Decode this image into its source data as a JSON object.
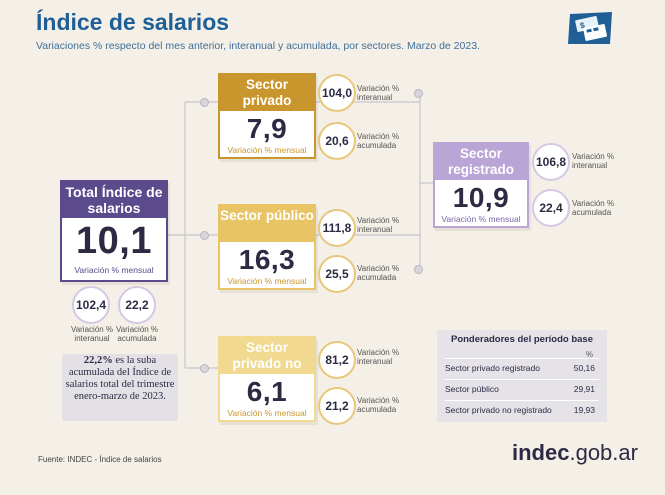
{
  "header": {
    "title": "Índice de salarios",
    "subtitle": "Variaciones % respecto del mes anterior, interanual y acumulada, por sectores. Marzo de 2023."
  },
  "total": {
    "title": "Total Índice de salarios",
    "value": "10,1",
    "caption": "Variación % mensual",
    "interanual_value": "102,4",
    "interanual_label": "Variación % interanual",
    "acumulada_value": "22,2",
    "acumulada_label": "Variación % acumulada"
  },
  "privado_registrado": {
    "title": "Sector privado registrado",
    "value": "7,9",
    "caption": "Variación % mensual",
    "interanual_value": "104,0",
    "interanual_label": "Variación % interanual",
    "acumulada_value": "20,6",
    "acumulada_label": "Variación % acumulada"
  },
  "publico": {
    "title": "Sector público",
    "value": "16,3",
    "caption": "Variación % mensual",
    "interanual_value": "111,8",
    "interanual_label": "Variación % interanual",
    "acumulada_value": "25,5",
    "acumulada_label": "Variación % acumulada"
  },
  "no_registrado": {
    "title": "Sector privado no registrado",
    "value": "6,1",
    "caption": "Variación % mensual",
    "interanual_value": "81,2",
    "interanual_label": "Variación % interanual",
    "acumulada_value": "21,2",
    "acumulada_label": "Variación % acumulada"
  },
  "registrado": {
    "title": "Sector registrado",
    "value": "10,9",
    "caption": "Variación % mensual",
    "interanual_value": "106,8",
    "interanual_label": "Variación % interanual",
    "acumulada_value": "22,4",
    "acumulada_label": "Variación % acumulada"
  },
  "note": {
    "highlight": "22,2%",
    "text": " es la suba acumulada del Índice de salarios total del trimestre enero-marzo de 2023."
  },
  "ponderadores": {
    "title": "Ponderadores del período base",
    "unit": "%",
    "rows": [
      {
        "label": "Sector privado registrado",
        "value": "50,16"
      },
      {
        "label": "Sector público",
        "value": "29,91"
      },
      {
        "label": "Sector privado no registrado",
        "value": "19,93"
      }
    ]
  },
  "footer": {
    "source": "Fuente: INDEC - Índice de salarios",
    "brand_main": "indec",
    "brand_suffix": ".gob.ar"
  },
  "colors": {
    "total": "#5b4a8c",
    "privado": "#c9962d",
    "publico": "#e8c465",
    "no_registrado": "#f1d990",
    "registrado": "#b9a5d6",
    "title": "#1f5f96"
  },
  "icons": {
    "logo": "money-calculator-icon"
  }
}
